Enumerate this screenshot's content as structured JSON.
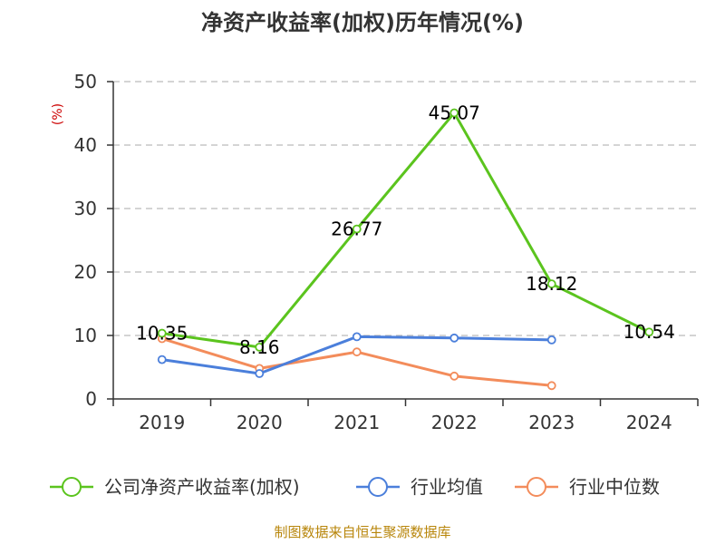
{
  "chart_data": {
    "type": "line",
    "title": "净资产收益率(加权)历年情况(%)",
    "ylabel": "(%)",
    "xlabel": "",
    "categories": [
      "2019",
      "2020",
      "2021",
      "2022",
      "2023",
      "2024"
    ],
    "ylim": [
      0,
      50
    ],
    "yticks": [
      0,
      10,
      20,
      30,
      40,
      50
    ],
    "grid": true,
    "legend_position": "bottom",
    "series": [
      {
        "name": "公司净资产收益率(加权)",
        "color": "#5bc41e",
        "values": [
          10.35,
          8.16,
          26.77,
          45.07,
          18.12,
          10.54
        ],
        "labels": [
          "10.35",
          "8.16",
          "26.77",
          "45.07",
          "18.12",
          "10.54"
        ]
      },
      {
        "name": "行业均值",
        "color": "#4b7fdb",
        "values": [
          6.2,
          4.0,
          9.8,
          9.6,
          9.3,
          null
        ]
      },
      {
        "name": "行业中位数",
        "color": "#f38c5b",
        "values": [
          9.5,
          4.8,
          7.4,
          3.6,
          2.1,
          null
        ]
      }
    ]
  },
  "source": "制图数据来自恒生聚源数据库"
}
